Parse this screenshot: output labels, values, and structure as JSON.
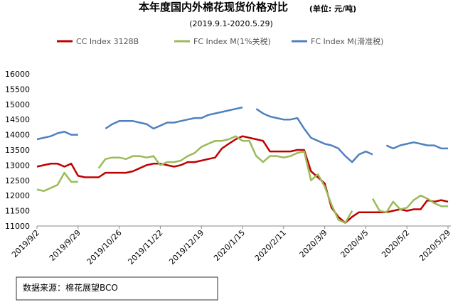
{
  "chart_data": {
    "type": "line",
    "title": "本年度国内外棉花现货价格对比",
    "unit": "(单位: 元/吨)",
    "subtitle": "(2019.9.1-2020.5.29)",
    "source": "数据来源：棉花展望BCO",
    "categories": [
      "2019/9/2",
      null,
      null,
      null,
      null,
      null,
      "2019/9/29",
      null,
      null,
      null,
      null,
      null,
      "2019/10/26",
      null,
      null,
      null,
      null,
      null,
      "2019/11/22",
      null,
      null,
      null,
      null,
      null,
      "2019/12/19",
      null,
      null,
      null,
      null,
      null,
      "2020/1/15",
      null,
      null,
      null,
      null,
      null,
      "2020/2/11",
      null,
      null,
      null,
      null,
      null,
      "2020/3/9",
      null,
      null,
      null,
      null,
      null,
      "2020/4/5",
      null,
      null,
      null,
      null,
      null,
      "2020/5/2",
      null,
      null,
      null,
      null,
      null,
      "2020/5/29"
    ],
    "series": [
      {
        "name": "CC Index 3128B",
        "color": "#c00000",
        "values": [
          12950,
          13000,
          13050,
          13050,
          12950,
          13050,
          12650,
          12600,
          12600,
          12600,
          12750,
          12750,
          12750,
          12750,
          12800,
          12900,
          13000,
          13050,
          13050,
          13000,
          12950,
          13000,
          13100,
          13100,
          13150,
          13200,
          13250,
          13550,
          13700,
          13850,
          13950,
          13900,
          13850,
          13800,
          13450,
          13450,
          13450,
          13450,
          13500,
          13500,
          12800,
          12600,
          12400,
          11600,
          11300,
          11100,
          11300,
          11450,
          11450,
          11450,
          11450,
          11450,
          11500,
          11550,
          11500,
          11550,
          11550,
          11850,
          11800,
          11850,
          11800
        ]
      },
      {
        "name": "FC Index M(1%关税)",
        "color": "#9bbb59",
        "values": [
          12200,
          12150,
          12250,
          12350,
          12750,
          12450,
          12450,
          null,
          null,
          12900,
          13200,
          13250,
          13250,
          13200,
          13300,
          13300,
          13250,
          13300,
          13000,
          13100,
          13100,
          13150,
          13300,
          13400,
          13600,
          13700,
          13800,
          13800,
          13850,
          13950,
          13800,
          13800,
          13300,
          13100,
          13300,
          13300,
          13250,
          13300,
          13400,
          13450,
          12500,
          12700,
          12300,
          11700,
          11200,
          11100,
          11500,
          null,
          null,
          11900,
          11500,
          11450,
          11800,
          11550,
          11600,
          11850,
          12000,
          11900,
          11750,
          11650,
          11650
        ]
      },
      {
        "name": "FC Index M(滑准税)",
        "color": "#4f81bd",
        "values": [
          13850,
          13900,
          13950,
          14050,
          14100,
          14000,
          14000,
          null,
          null,
          null,
          14200,
          14350,
          14450,
          14450,
          14450,
          14400,
          14350,
          14200,
          14300,
          14400,
          14400,
          14450,
          14500,
          14550,
          14550,
          14650,
          14700,
          14750,
          14800,
          14850,
          14900,
          null,
          14850,
          14700,
          14600,
          14550,
          14500,
          14500,
          14550,
          14200,
          13900,
          13800,
          13700,
          13650,
          13550,
          13300,
          13100,
          13350,
          13450,
          13350,
          null,
          13650,
          13550,
          13650,
          13700,
          13750,
          13700,
          13650,
          13650,
          13550,
          13550
        ]
      }
    ],
    "ylim": [
      11000,
      16000
    ],
    "yticks": [
      11000,
      11500,
      12000,
      12500,
      13000,
      13500,
      14000,
      14500,
      15000,
      15500,
      16000
    ],
    "grid": false,
    "legend": "top"
  }
}
